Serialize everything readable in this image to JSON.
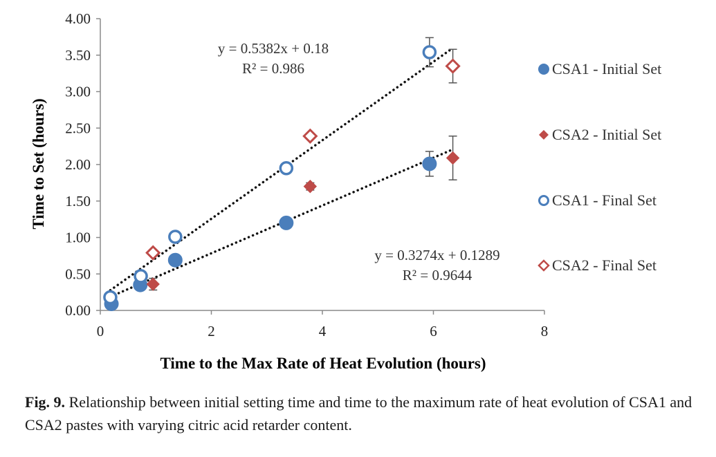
{
  "chart_data": {
    "type": "scatter",
    "title": "",
    "xlabel": "Time to the Max Rate of Heat Evolution (hours)",
    "ylabel": "Time to Set (hours)",
    "xlim": [
      0,
      8
    ],
    "ylim": [
      0,
      4
    ],
    "xticks": [
      "0",
      "2",
      "4",
      "6",
      "8"
    ],
    "yticks": [
      "0.00",
      "0.50",
      "1.00",
      "1.50",
      "2.00",
      "2.50",
      "3.00",
      "3.50",
      "4.00"
    ],
    "grid": false,
    "legend_position": "right",
    "series": [
      {
        "name": "CSA1 - Initial Set",
        "marker": "filled-circle",
        "color": "#4a7ebb",
        "x": [
          0.2,
          0.72,
          1.35,
          3.35,
          5.93
        ],
        "y": [
          0.09,
          0.35,
          0.69,
          1.2,
          2.01
        ],
        "error": [
          0,
          0,
          0,
          0,
          0.17
        ]
      },
      {
        "name": "CSA2 - Initial Set",
        "marker": "filled-diamond",
        "color": "#be4b48",
        "x": [
          0.95,
          3.78,
          6.35
        ],
        "y": [
          0.36,
          1.7,
          2.09
        ],
        "error": [
          0.08,
          0.05,
          0.3
        ]
      },
      {
        "name": "CSA1 - Final Set",
        "marker": "open-circle",
        "color": "#4a7ebb",
        "x": [
          0.18,
          0.73,
          1.35,
          3.35,
          5.93
        ],
        "y": [
          0.18,
          0.47,
          1.01,
          1.95,
          3.54
        ],
        "error": [
          0,
          0,
          0,
          0,
          0.2
        ]
      },
      {
        "name": "CSA2 - Final Set",
        "marker": "open-diamond",
        "color": "#be4b48",
        "x": [
          0.95,
          3.78,
          6.35
        ],
        "y": [
          0.79,
          2.39,
          3.35
        ],
        "error": [
          0,
          0,
          0.23
        ]
      }
    ],
    "trendlines": [
      {
        "slope": 0.5382,
        "intercept": 0.18,
        "x_range": [
          0.18,
          6.35
        ],
        "equation": "y = 0.5382x + 0.18",
        "r2": "R² = 0.986"
      },
      {
        "slope": 0.3274,
        "intercept": 0.1289,
        "x_range": [
          0.18,
          6.35
        ],
        "equation": "y = 0.3274x + 0.1289",
        "r2": "R² = 0.9644"
      }
    ]
  },
  "caption": {
    "label": "Fig. 9.",
    "text": " Relationship between initial setting time and time to the maximum rate of heat evolution of CSA1 and CSA2 pastes with varying citric acid retarder content."
  }
}
